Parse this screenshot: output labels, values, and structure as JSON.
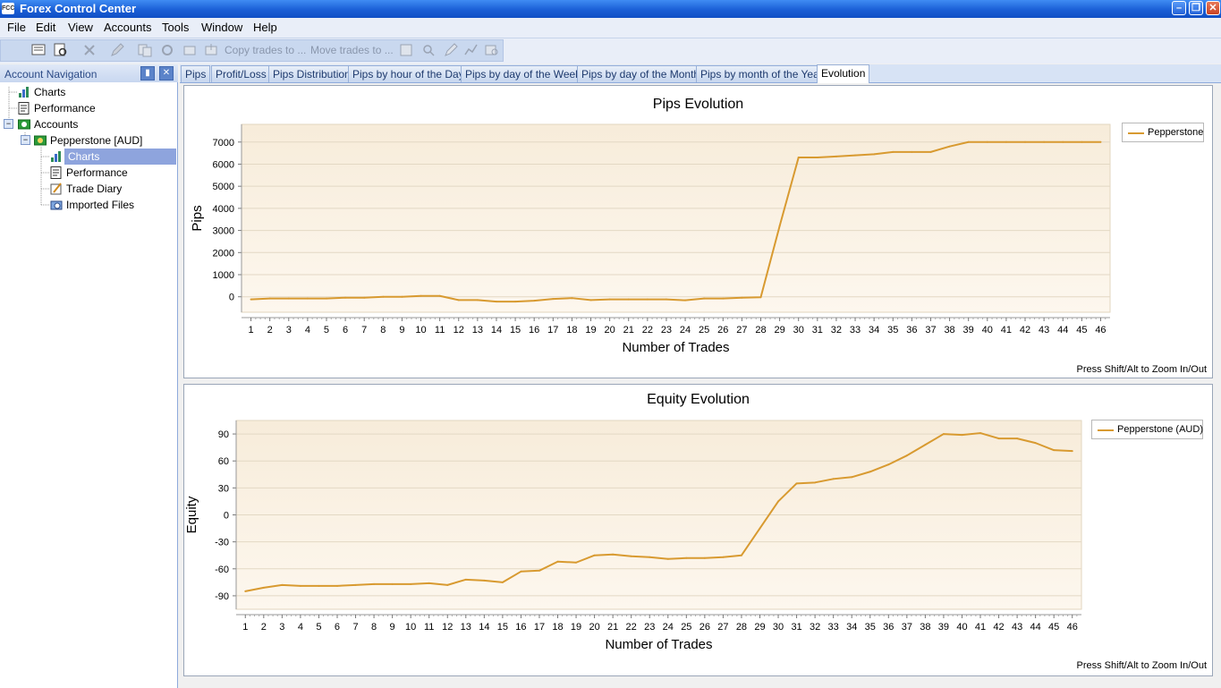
{
  "window": {
    "title": "Forex Control Center",
    "app_icon_text": "FCC"
  },
  "menu": [
    "File",
    "Edit",
    "View",
    "Accounts",
    "Tools",
    "Window",
    "Help"
  ],
  "toolbar": {
    "copy_trades": "Copy trades to ...",
    "move_trades": "Move trades to ..."
  },
  "nav": {
    "header": "Account Navigation",
    "items": [
      {
        "label": "Charts"
      },
      {
        "label": "Performance"
      },
      {
        "label": "Accounts"
      },
      {
        "label": "Pepperstone [AUD]"
      },
      {
        "label": "Charts"
      },
      {
        "label": "Performance"
      },
      {
        "label": "Trade Diary"
      },
      {
        "label": "Imported Files"
      }
    ]
  },
  "tabs": [
    "Pips",
    "Profit/Loss",
    "Pips Distribution",
    "Pips by hour of the Day",
    "Pips by day of the Week",
    "Pips by day of the Month",
    "Pips by month of the Year",
    "Evolution"
  ],
  "active_tab": "Evolution",
  "zoom_hint": "Press Shift/Alt to Zoom In/Out",
  "colors": {
    "series": "#d89a30",
    "plot_bg_top": "#f7ecda",
    "plot_bg_bottom": "#fdf7ee"
  },
  "chart_data": [
    {
      "type": "line",
      "title": "Pips Evolution",
      "xlabel": "Number of Trades",
      "ylabel": "Pips",
      "ylim": [
        -700,
        7800
      ],
      "yticks": [
        0,
        1000,
        2000,
        3000,
        4000,
        5000,
        6000,
        7000
      ],
      "legend": "top-right",
      "series": [
        {
          "name": "Pepperstone",
          "x": [
            1,
            2,
            3,
            4,
            5,
            6,
            7,
            8,
            9,
            10,
            11,
            12,
            13,
            14,
            15,
            16,
            17,
            18,
            19,
            20,
            21,
            22,
            23,
            24,
            25,
            26,
            27,
            28,
            29,
            30,
            31,
            32,
            33,
            34,
            35,
            36,
            37,
            38,
            39,
            40,
            41,
            42,
            43,
            44,
            45,
            46
          ],
          "values": [
            -120,
            -80,
            -80,
            -80,
            -80,
            -40,
            -40,
            0,
            0,
            40,
            40,
            -150,
            -150,
            -220,
            -220,
            -180,
            -100,
            -60,
            -150,
            -120,
            -120,
            -120,
            -120,
            -160,
            -80,
            -80,
            -40,
            -20,
            3200,
            6300,
            6300,
            6350,
            6400,
            6450,
            6550,
            6550,
            6550,
            6800,
            7000,
            7000,
            7000,
            7000,
            7000,
            7000,
            7000,
            7000
          ]
        }
      ]
    },
    {
      "type": "line",
      "title": "Equity Evolution",
      "xlabel": "Number of Trades",
      "ylabel": "Equity",
      "ylim": [
        -105,
        105
      ],
      "yticks": [
        90,
        60,
        30,
        0,
        -30,
        -60,
        -90
      ],
      "legend": "top-right",
      "series": [
        {
          "name": "Pepperstone (AUD)",
          "x": [
            1,
            2,
            3,
            4,
            5,
            6,
            7,
            8,
            9,
            10,
            11,
            12,
            13,
            14,
            15,
            16,
            17,
            18,
            19,
            20,
            21,
            22,
            23,
            24,
            25,
            26,
            27,
            28,
            29,
            30,
            31,
            32,
            33,
            34,
            35,
            36,
            37,
            38,
            39,
            40,
            41,
            42,
            43,
            44,
            45,
            46
          ],
          "values": [
            -85,
            -81,
            -78,
            -79,
            -79,
            -79,
            -78,
            -77,
            -77,
            -77,
            -76,
            -78,
            -72,
            -73,
            -75,
            -63,
            -62,
            -52,
            -53,
            -45,
            -44,
            -46,
            -47,
            -49,
            -48,
            -48,
            -47,
            -45,
            -15,
            15,
            35,
            36,
            40,
            42,
            48,
            56,
            66,
            78,
            90,
            89,
            91,
            85,
            85,
            80,
            72,
            71
          ]
        }
      ]
    }
  ]
}
